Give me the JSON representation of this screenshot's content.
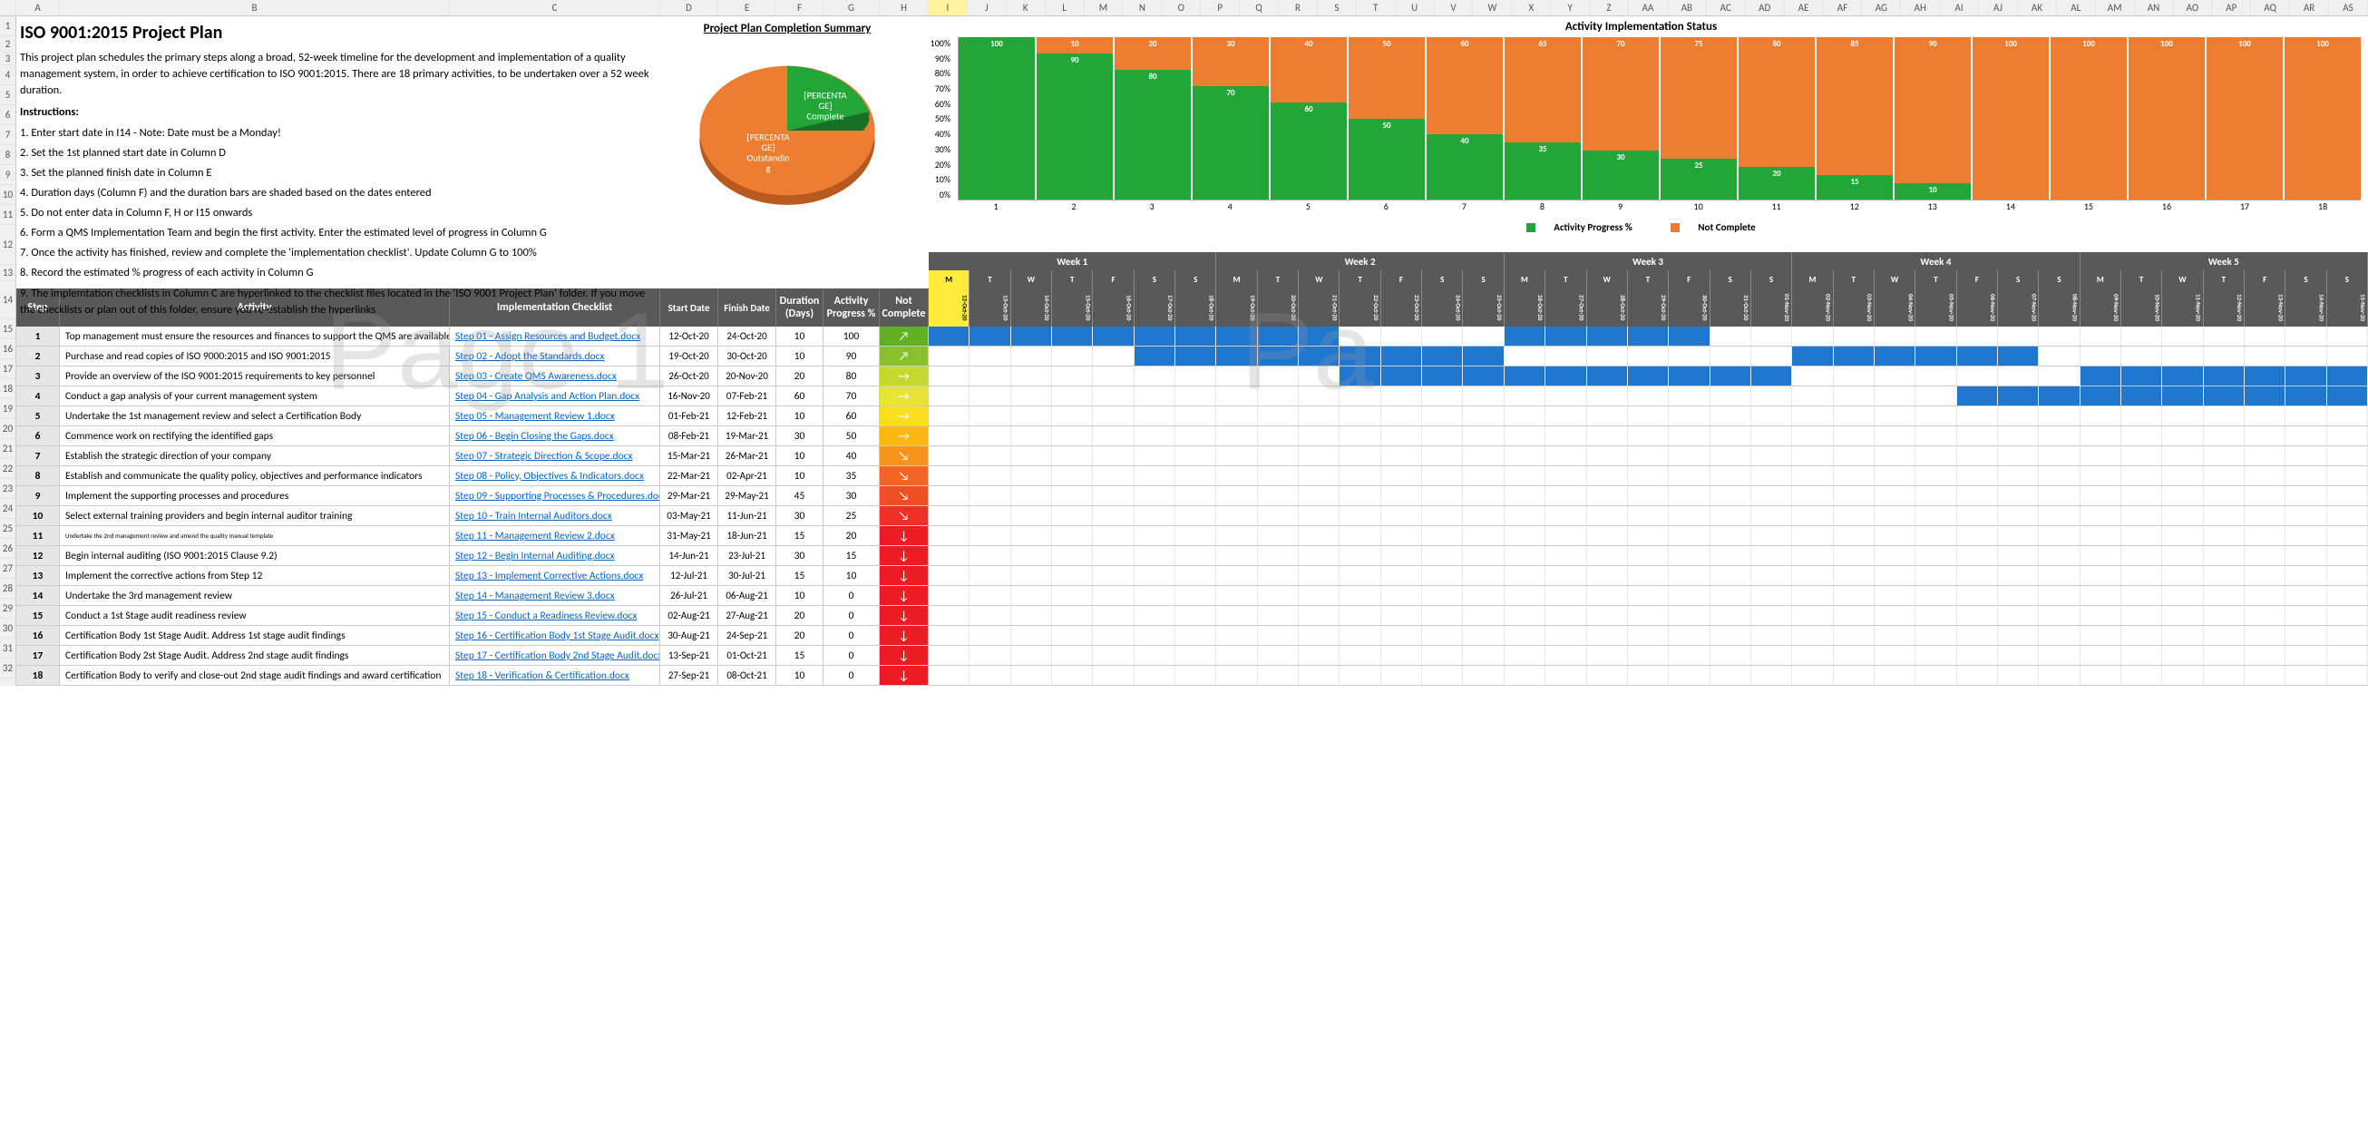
{
  "title": "ISO 9001:2015 Project Plan",
  "intro": "This project plan schedules the primary steps along a broad, 52-week timeline for the development and implementation of a quality management system, in order to achieve certification to ISO 9001:2015. There are 18 primary activities, to be undertaken over a 52 week duration.",
  "instructions_label": "Instructions:",
  "instructions": [
    "1. Enter start date in I14 - Note: Date must be a Monday!",
    "2. Set the 1st planned start date in Column D",
    "3. Set the planned finish date in Column E",
    "4. Duration days (Column F) and the duration bars are shaded based on the dates entered",
    "5. Do not enter data in Column F, H or I15 onwards",
    "6. Form a QMS Implementation Team and begin the first activity. Enter the estimated level of progress in Column G",
    "7. Once the activity has finished, review and complete the 'implementation checklist'. Update Column G to 100%",
    "8. Record the estimated % progress of each activity in Column G",
    "9. The implemtation checklists in Column C are hyperlinked to the checklist files located in the 'ISO 9001 Project Plan' folder. If you move the checklists or plan out of this folder, ensure you re-establish the hyperlinks"
  ],
  "pie": {
    "title": "Project Plan Completion Summary",
    "complete_label": "[PERCENTAGE] Complete",
    "outstanding_label": "[PERCENTAGE] Outstanding",
    "complete_pct": 22,
    "colors": {
      "complete": "#21a637",
      "outstanding": "#ed7d31"
    }
  },
  "barchart": {
    "title": "Activity Implementation Status",
    "legend_complete": "Activity Progress %",
    "legend_not": "Not Complete",
    "colors": {
      "complete": "#21a637",
      "not": "#ed7d31",
      "label": "#ffffff"
    },
    "yticks": [
      "100%",
      "90%",
      "80%",
      "70%",
      "60%",
      "50%",
      "40%",
      "30%",
      "20%",
      "10%",
      "0%"
    ],
    "values": [
      100,
      90,
      80,
      70,
      60,
      50,
      40,
      35,
      30,
      25,
      20,
      15,
      10,
      0,
      0,
      0,
      0,
      0
    ],
    "top_labels": [
      0,
      10,
      20,
      30,
      40,
      50,
      60,
      65,
      70,
      75,
      80,
      85,
      90,
      100,
      100,
      100,
      100,
      100
    ]
  },
  "table": {
    "headers": {
      "step": "Step",
      "activity": "Activity",
      "checklist": "Implementation Checklist",
      "start": "Start Date",
      "finish": "Finish Date",
      "duration": "Duration (Days)",
      "progress": "Activity Progress %",
      "notcomplete": "Not Complete"
    },
    "rows": [
      {
        "step": 1,
        "activity": "Top management must ensure the resources and finances to support the QMS are available",
        "chk": "Step 01 - Assign Resources and Budget.docx",
        "start": "12-Oct-20",
        "finish": "24-Oct-20",
        "dur": 10,
        "prog": 100,
        "nc_color": "#5fb122",
        "nc_icon": "↗",
        "gantt": [
          [
            0,
            9
          ],
          [
            14,
            18
          ]
        ]
      },
      {
        "step": 2,
        "activity": "Purchase and read copies of ISO 9000:2015 and ISO 9001:2015",
        "chk": "Step 02 - Adopt the Standards.docx",
        "start": "19-Oct-20",
        "finish": "30-Oct-20",
        "dur": 10,
        "prog": 90,
        "nc_color": "#87c22a",
        "nc_icon": "↗",
        "gantt": [
          [
            5,
            13
          ],
          [
            21,
            26
          ]
        ]
      },
      {
        "step": 3,
        "activity": "Provide an overview of the ISO 9001:2015 requirements to key personnel",
        "chk": "Step 03 - Create QMS Awareness.docx",
        "start": "26-Oct-20",
        "finish": "20-Nov-20",
        "dur": 20,
        "prog": 80,
        "nc_color": "#c5d82d",
        "nc_icon": "→",
        "gantt": [
          [
            10,
            20
          ],
          [
            28,
            34
          ]
        ]
      },
      {
        "step": 4,
        "activity": "Conduct a gap analysis of your current management system",
        "chk": "Step 04 - Gap Analysis and Action Plan.docx",
        "start": "16-Nov-20",
        "finish": "07-Feb-21",
        "dur": 60,
        "prog": 70,
        "nc_color": "#e8e337",
        "nc_icon": "→",
        "gantt": [
          [
            25,
            34
          ]
        ]
      },
      {
        "step": 5,
        "activity": "Undertake the 1st management review and select a Certification Body",
        "chk": "Step 05 - Management Review 1.docx",
        "start": "01-Feb-21",
        "finish": "12-Feb-21",
        "dur": 10,
        "prog": 60,
        "nc_color": "#f9df1e",
        "nc_icon": "→",
        "gantt": []
      },
      {
        "step": 6,
        "activity": "Commence work on rectifying the identified gaps",
        "chk": "Step 06 - Begin Closing the Gaps.docx",
        "start": "08-Feb-21",
        "finish": "19-Mar-21",
        "dur": 30,
        "prog": 50,
        "nc_color": "#fcb713",
        "nc_icon": "→",
        "gantt": []
      },
      {
        "step": 7,
        "activity": "Establish the strategic direction of your company",
        "chk": "Step 07 - Strategic Direction & Scope.docx",
        "start": "15-Mar-21",
        "finish": "26-Mar-21",
        "dur": 10,
        "prog": 40,
        "nc_color": "#f7941e",
        "nc_icon": "↘",
        "gantt": []
      },
      {
        "step": 8,
        "activity": "Establish and communicate the quality policy, objectives and performance indicators",
        "chk": "Step 08 - Policy, Objectives & Indicators.docx",
        "start": "22-Mar-21",
        "finish": "02-Apr-21",
        "dur": 10,
        "prog": 35,
        "nc_color": "#f26522",
        "nc_icon": "↘",
        "gantt": []
      },
      {
        "step": 9,
        "activity": "Implement the supporting processes and procedures",
        "chk": "Step 09 - Supporting Processes & Procedures.docx",
        "start": "29-Mar-21",
        "finish": "29-May-21",
        "dur": 45,
        "prog": 30,
        "nc_color": "#f04e23",
        "nc_icon": "↘",
        "gantt": []
      },
      {
        "step": 10,
        "activity": "Select external training providers and begin internal auditor training",
        "chk": "Step 10 - Train Internal Auditors.docx",
        "start": "03-May-21",
        "finish": "11-Jun-21",
        "dur": 30,
        "prog": 25,
        "nc_color": "#ee3124",
        "nc_icon": "↘",
        "gantt": []
      },
      {
        "step": 11,
        "activity": "Undertake the 2nd management review and amend the quality manual template",
        "chk": "Step 11 - Management Review 2.docx",
        "start": "31-May-21",
        "finish": "18-Jun-21",
        "dur": 15,
        "prog": 20,
        "nc_color": "#ed1c24",
        "nc_icon": "↓",
        "gantt": [],
        "small": true
      },
      {
        "step": 12,
        "activity": "Begin internal auditing (ISO 9001:2015 Clause 9.2)",
        "chk": "Step 12 - Begin Internal Auditing.docx",
        "start": "14-Jun-21",
        "finish": "23-Jul-21",
        "dur": 30,
        "prog": 15,
        "nc_color": "#ed1c24",
        "nc_icon": "↓",
        "gantt": []
      },
      {
        "step": 13,
        "activity": "Implement the corrective actions from Step 12",
        "chk": "Step 13 - Implement Corrective Actions.docx",
        "start": "12-Jul-21",
        "finish": "30-Jul-21",
        "dur": 15,
        "prog": 10,
        "nc_color": "#ed1c24",
        "nc_icon": "↓",
        "gantt": []
      },
      {
        "step": 14,
        "activity": "Undertake the 3rd management review",
        "chk": "Step 14 - Management Review 3.docx",
        "start": "26-Jul-21",
        "finish": "06-Aug-21",
        "dur": 10,
        "prog": 0,
        "nc_color": "#ed1c24",
        "nc_icon": "↓",
        "gantt": []
      },
      {
        "step": 15,
        "activity": "Conduct a 1st Stage audit readiness review",
        "chk": "Step 15 - Conduct a Readiness Review.docx",
        "start": "02-Aug-21",
        "finish": "27-Aug-21",
        "dur": 20,
        "prog": 0,
        "nc_color": "#ed1c24",
        "nc_icon": "↓",
        "gantt": []
      },
      {
        "step": 16,
        "activity": "Certification Body 1st Stage Audit. Address 1st stage audit findings",
        "chk": "Step 16 - Certification Body 1st Stage Audit.docx",
        "start": "30-Aug-21",
        "finish": "24-Sep-21",
        "dur": 20,
        "prog": 0,
        "nc_color": "#ed1c24",
        "nc_icon": "↓",
        "gantt": []
      },
      {
        "step": 17,
        "activity": "Certification Body 2st Stage Audit. Address 2nd stage audit findings",
        "chk": "Step 17 - Certification Body 2nd Stage Audit.docx",
        "start": "13-Sep-21",
        "finish": "01-Oct-21",
        "dur": 15,
        "prog": 0,
        "nc_color": "#ed1c24",
        "nc_icon": "↓",
        "gantt": []
      },
      {
        "step": 18,
        "activity": "Certification Body to verify and close-out 2nd stage audit findings and award certification",
        "chk": "Step 18 - Verification & Certification.docx",
        "start": "27-Sep-21",
        "finish": "08-Oct-21",
        "dur": 10,
        "prog": 0,
        "nc_color": "#ed1c24",
        "nc_icon": "↓",
        "gantt": []
      }
    ]
  },
  "gantt": {
    "weeks": [
      "Week 1",
      "Week 2",
      "Week 3",
      "Week 4",
      "Week 5"
    ],
    "day_letters": [
      "M",
      "T",
      "W",
      "T",
      "F",
      "S",
      "S"
    ],
    "total_days": 35,
    "highlight_day": 0,
    "dates": [
      "12-Oct-20",
      "13-Oct-20",
      "14-Oct-20",
      "15-Oct-20",
      "16-Oct-20",
      "17-Oct-20",
      "18-Oct-20",
      "19-Oct-20",
      "20-Oct-20",
      "21-Oct-20",
      "22-Oct-20",
      "23-Oct-20",
      "24-Oct-20",
      "25-Oct-20",
      "26-Oct-20",
      "27-Oct-20",
      "28-Oct-20",
      "29-Oct-20",
      "30-Oct-20",
      "31-Oct-20",
      "01-Nov-20",
      "02-Nov-20",
      "03-Nov-20",
      "04-Nov-20",
      "05-Nov-20",
      "06-Nov-20",
      "07-Nov-20",
      "08-Nov-20",
      "09-Nov-20",
      "10-Nov-20",
      "11-Nov-20",
      "12-Nov-20",
      "13-Nov-20",
      "14-Nov-20",
      "15-Nov-20"
    ]
  },
  "col_letters_left": [
    "A",
    "B",
    "C",
    "D",
    "E",
    "F",
    "G",
    "H"
  ],
  "col_letters_right": [
    "I",
    "J",
    "K",
    "L",
    "M",
    "N",
    "O",
    "P",
    "Q",
    "R",
    "S",
    "T",
    "U",
    "V",
    "W",
    "X",
    "Y",
    "Z",
    "AA",
    "AB",
    "AC",
    "AD",
    "AE",
    "AF",
    "AG",
    "AH",
    "AI",
    "AJ",
    "AK",
    "AL",
    "AM",
    "AN",
    "AO",
    "AP",
    "AQ",
    "AR",
    "AS"
  ],
  "col_widths_left": [
    48,
    430,
    232,
    64,
    64,
    52,
    62,
    54
  ],
  "watermark1": "Page 1",
  "watermark2": "Pa"
}
